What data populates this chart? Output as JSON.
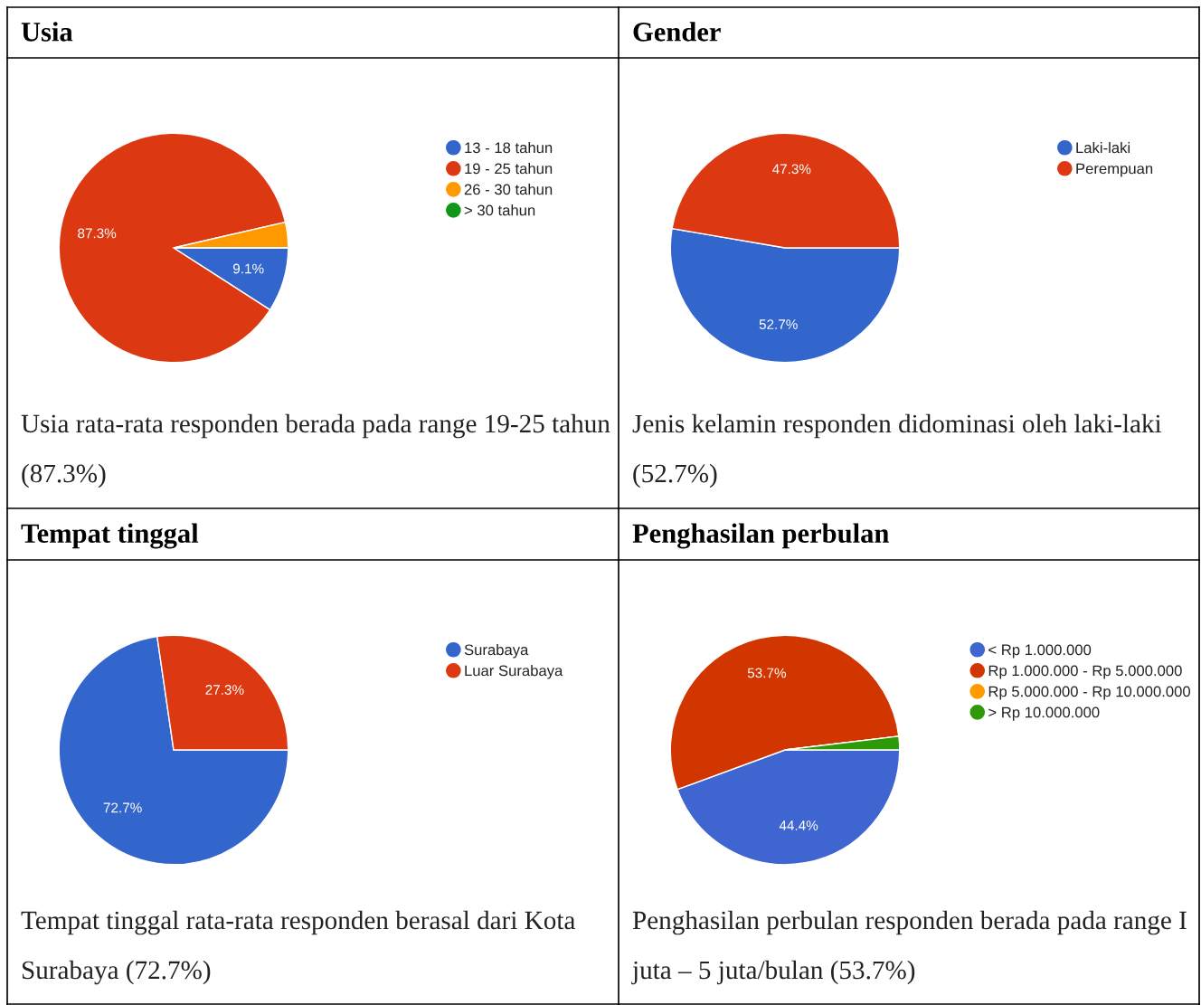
{
  "chart_data": [
    {
      "type": "pie",
      "title": "Usia",
      "categories": [
        "13 - 18 tahun",
        "19 - 25 tahun",
        "26 - 30 tahun",
        "> 30 tahun"
      ],
      "values": [
        9.1,
        87.3,
        3.6,
        0
      ],
      "colors": [
        "#3366cc",
        "#dc3912",
        "#ff9900",
        "#109618"
      ],
      "value_labels": [
        "9.1%",
        "87.3%",
        null,
        null
      ],
      "legend": "right",
      "annotations": [
        "Usia rata-rata responden berada pada range 19-25 tahun (87.3%)"
      ]
    },
    {
      "type": "pie",
      "title": "Gender",
      "categories": [
        "Laki-laki",
        "Perempuan"
      ],
      "values": [
        52.7,
        47.3
      ],
      "colors": [
        "#3366cc",
        "#dc3912"
      ],
      "value_labels": [
        "52.7%",
        "47.3%"
      ],
      "legend": "right",
      "annotations": [
        "Jenis kelamin responden didominasi oleh laki-laki (52.7%)"
      ]
    },
    {
      "type": "pie",
      "title": "Tempat tinggal",
      "categories": [
        "Surabaya",
        "Luar Surabaya"
      ],
      "values": [
        72.7,
        27.3
      ],
      "colors": [
        "#3366cc",
        "#dc3912"
      ],
      "value_labels": [
        "72.7%",
        "27.3%"
      ],
      "legend": "right",
      "annotations": [
        "Tempat tinggal rata-rata responden berasal dari Kota Surabaya (72.7%)"
      ]
    },
    {
      "type": "pie",
      "title": "Penghasilan perbulan",
      "categories": [
        "< Rp 1.000.000",
        "Rp 1.000.000 - Rp 5.000.000",
        "Rp 5.000.000 - Rp 10.000.000",
        "> Rp 10.000.000"
      ],
      "values": [
        44.4,
        53.7,
        0,
        1.9
      ],
      "colors": [
        "#3f66d0",
        "#d23600",
        "#ff9900",
        "#2e9a0a"
      ],
      "value_labels": [
        "44.4%",
        "53.7%",
        null,
        null
      ],
      "legend": "right",
      "annotations": [
        "Penghasilan perbulan responden berada pada range I juta – 5 juta/bulan (53.7%)"
      ]
    }
  ]
}
